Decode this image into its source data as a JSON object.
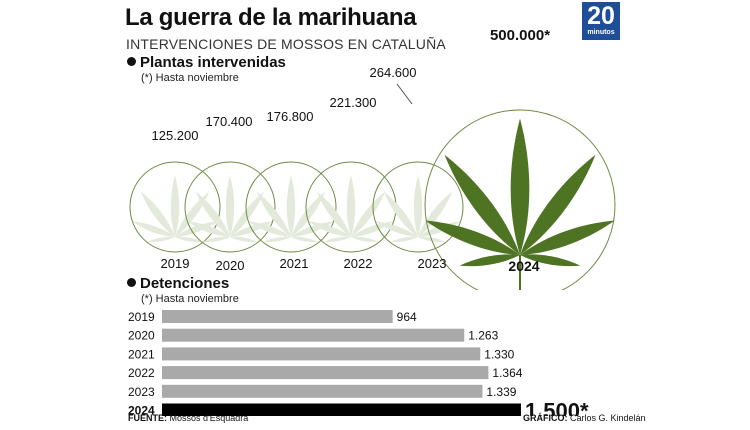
{
  "header": {
    "title": "La guerra de la marihuana",
    "subtitle": "INTERVENCIONES DE MOSSOS EN CATALUÑA",
    "logo_number": "20",
    "logo_word": "minutos"
  },
  "plants_section": {
    "heading": "Plantas intervenidas",
    "note": "(*) Hasta noviembre"
  },
  "arrests_section": {
    "heading": "Detenciones",
    "note": "(*) Hasta noviembre"
  },
  "footer": {
    "source_label": "FUENTE:",
    "source_value": "Mossos d'Esquadra",
    "credit_label": "GRÁFICO:",
    "credit_value": "Carlos G. Kindelán"
  },
  "colors": {
    "leaf": "#4e7423",
    "leaf_faded": "#e3eadb",
    "circle_stroke": "#6f8c45",
    "bar_gray": "#a9a9a9",
    "bar_highlight": "#000000",
    "logo_blue": "#1f4e99"
  },
  "chart_data": [
    {
      "type": "bubble",
      "title": "Plantas intervenidas",
      "categories": [
        "2019",
        "2020",
        "2021",
        "2022",
        "2023",
        "2024"
      ],
      "values": [
        125200,
        170400,
        176800,
        221300,
        264600,
        500000
      ],
      "value_labels": [
        "125.200",
        "170.400",
        "176.800",
        "221.300",
        "264.600",
        "500.000*"
      ],
      "highlight_index": 5
    },
    {
      "type": "bar",
      "orientation": "horizontal",
      "title": "Detenciones",
      "categories": [
        "2019",
        "2020",
        "2021",
        "2022",
        "2023",
        "2024"
      ],
      "values": [
        964,
        1263,
        1330,
        1364,
        1339,
        1500
      ],
      "value_labels": [
        "964",
        "1.263",
        "1.330",
        "1.364",
        "1.339",
        "1.500*"
      ],
      "highlight_index": 5
    }
  ]
}
